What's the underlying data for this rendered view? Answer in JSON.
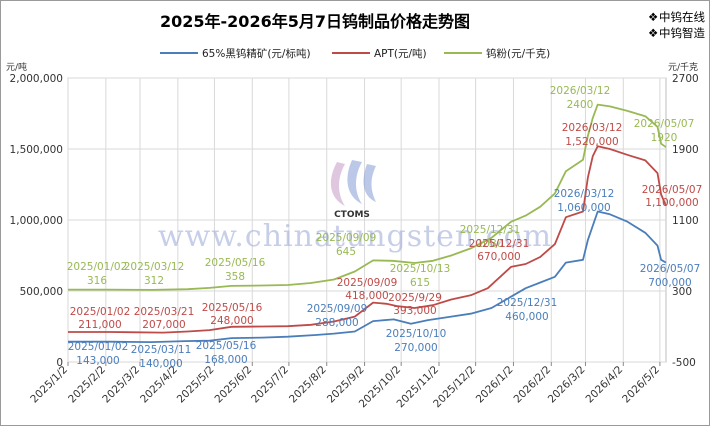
{
  "header": {
    "title": "2025年-2026年5月7日钨制品价格走势图",
    "brand_lines": [
      "中钨在线",
      "中钨智造"
    ]
  },
  "watermark": {
    "text": "www.chinatungsten.com",
    "logo_text": "CTOMS"
  },
  "colors": {
    "ore": "#4a7ebb",
    "apt": "#be4b48",
    "powder": "#98b954"
  },
  "chart_data": {
    "type": "line",
    "title": "2025年-2026年5月7日钨制品价格走势图",
    "left_unit": "元/吨",
    "right_unit": "元/千克",
    "x_ticks": [
      "2025/1/2",
      "2025/2/2",
      "2025/3/2",
      "2025/4/2",
      "2025/5/2",
      "2025/6/2",
      "2025/7/2",
      "2025/8/2",
      "2025/9/2",
      "2025/10/2",
      "2025/11/2",
      "2025/12/2",
      "2026/1/2",
      "2026/2/2",
      "2026/3/2",
      "2026/4/2",
      "2026/5/2"
    ],
    "x_range": [
      "2025-01-02",
      "2026-05-07"
    ],
    "left_axis": {
      "min": 0,
      "max": 2000000,
      "step": 500000,
      "tick_labels": [
        "0",
        "500,000",
        "1,000,000",
        "1,500,000",
        "2,000,000"
      ]
    },
    "right_axis": {
      "min": -500,
      "max": 2700,
      "step": 800,
      "tick_labels": [
        "-500",
        "300",
        "1100",
        "1900",
        "2700"
      ]
    },
    "grid": true,
    "legend": "top",
    "series": [
      {
        "name": "65%黑钨精矿(元/标吨)",
        "axis": "left",
        "color": "#4a7ebb",
        "points": [
          [
            "2025-01-02",
            143000
          ],
          [
            "2025-02-05",
            143000
          ],
          [
            "2025-03-11",
            140000
          ],
          [
            "2025-04-08",
            147000
          ],
          [
            "2025-04-28",
            150000
          ],
          [
            "2025-05-16",
            168000
          ],
          [
            "2025-06-10",
            172000
          ],
          [
            "2025-07-01",
            178000
          ],
          [
            "2025-07-24",
            190000
          ],
          [
            "2025-08-08",
            200000
          ],
          [
            "2025-08-25",
            215000
          ],
          [
            "2025-09-09",
            288000
          ],
          [
            "2025-09-26",
            300000
          ],
          [
            "2025-10-10",
            270000
          ],
          [
            "2025-10-24",
            295000
          ],
          [
            "2025-11-12",
            320000
          ],
          [
            "2025-11-28",
            340000
          ],
          [
            "2025-12-15",
            380000
          ],
          [
            "2025-12-31",
            460000
          ],
          [
            "2026-01-12",
            520000
          ],
          [
            "2026-01-24",
            560000
          ],
          [
            "2026-02-05",
            600000
          ],
          [
            "2026-02-14",
            700000
          ],
          [
            "2026-02-28",
            720000
          ],
          [
            "2026-03-04",
            860000
          ],
          [
            "2026-03-08",
            960000
          ],
          [
            "2026-03-12",
            1060000
          ],
          [
            "2026-03-22",
            1040000
          ],
          [
            "2026-04-05",
            990000
          ],
          [
            "2026-04-20",
            910000
          ],
          [
            "2026-04-30",
            820000
          ],
          [
            "2026-05-03",
            720000
          ],
          [
            "2026-05-07",
            700000
          ]
        ]
      },
      {
        "name": "APT(元/吨)",
        "axis": "left",
        "color": "#be4b48",
        "points": [
          [
            "2025-01-02",
            211000
          ],
          [
            "2025-02-05",
            211000
          ],
          [
            "2025-03-21",
            207000
          ],
          [
            "2025-04-10",
            215000
          ],
          [
            "2025-04-28",
            225000
          ],
          [
            "2025-05-16",
            248000
          ],
          [
            "2025-06-10",
            250000
          ],
          [
            "2025-07-01",
            252000
          ],
          [
            "2025-07-20",
            262000
          ],
          [
            "2025-08-08",
            285000
          ],
          [
            "2025-08-25",
            320000
          ],
          [
            "2025-09-09",
            418000
          ],
          [
            "2025-09-20",
            410000
          ],
          [
            "2025-09-29",
            393000
          ],
          [
            "2025-10-13",
            380000
          ],
          [
            "2025-10-28",
            400000
          ],
          [
            "2025-11-12",
            440000
          ],
          [
            "2025-11-28",
            470000
          ],
          [
            "2025-12-12",
            520000
          ],
          [
            "2025-12-31",
            670000
          ],
          [
            "2026-01-12",
            690000
          ],
          [
            "2026-01-24",
            740000
          ],
          [
            "2026-02-05",
            830000
          ],
          [
            "2026-02-14",
            1020000
          ],
          [
            "2026-02-28",
            1060000
          ],
          [
            "2026-03-04",
            1300000
          ],
          [
            "2026-03-08",
            1450000
          ],
          [
            "2026-03-12",
            1520000
          ],
          [
            "2026-03-22",
            1500000
          ],
          [
            "2026-04-05",
            1460000
          ],
          [
            "2026-04-20",
            1420000
          ],
          [
            "2026-04-30",
            1330000
          ],
          [
            "2026-05-03",
            1180000
          ],
          [
            "2026-05-07",
            1100000
          ]
        ]
      },
      {
        "name": "钨粉(元/千克)",
        "axis": "right",
        "color": "#98b954",
        "points": [
          [
            "2025-01-02",
            316
          ],
          [
            "2025-02-05",
            316
          ],
          [
            "2025-03-12",
            312
          ],
          [
            "2025-04-10",
            320
          ],
          [
            "2025-04-28",
            335
          ],
          [
            "2025-05-16",
            358
          ],
          [
            "2025-06-10",
            362
          ],
          [
            "2025-07-01",
            368
          ],
          [
            "2025-07-20",
            390
          ],
          [
            "2025-08-08",
            430
          ],
          [
            "2025-08-25",
            520
          ],
          [
            "2025-09-09",
            645
          ],
          [
            "2025-09-25",
            640
          ],
          [
            "2025-10-13",
            615
          ],
          [
            "2025-10-28",
            640
          ],
          [
            "2025-11-12",
            700
          ],
          [
            "2025-11-28",
            780
          ],
          [
            "2025-12-15",
            900
          ],
          [
            "2025-12-31",
            1080
          ],
          [
            "2026-01-12",
            1150
          ],
          [
            "2026-01-24",
            1250
          ],
          [
            "2026-02-05",
            1400
          ],
          [
            "2026-02-14",
            1650
          ],
          [
            "2026-02-28",
            1780
          ],
          [
            "2026-03-04",
            2050
          ],
          [
            "2026-03-08",
            2250
          ],
          [
            "2026-03-12",
            2400
          ],
          [
            "2026-03-22",
            2380
          ],
          [
            "2026-04-05",
            2330
          ],
          [
            "2026-04-20",
            2270
          ],
          [
            "2026-04-30",
            2150
          ],
          [
            "2026-05-03",
            1960
          ],
          [
            "2026-05-07",
            1920
          ]
        ]
      }
    ],
    "annotations": [
      {
        "series": 2,
        "date_label": "2025/01/02",
        "value_label": "316"
      },
      {
        "series": 2,
        "date_label": "2025/03/12",
        "value_label": "312"
      },
      {
        "series": 2,
        "date_label": "2025/05/16",
        "value_label": "358"
      },
      {
        "series": 2,
        "date_label": "2025/09/09",
        "value_label": "645"
      },
      {
        "series": 2,
        "date_label": "2025/10/13",
        "value_label": "615"
      },
      {
        "series": 2,
        "date_label": "2025/12/31",
        "value_label": "1080"
      },
      {
        "series": 2,
        "date_label": "2026/03/12",
        "value_label": "2400"
      },
      {
        "series": 2,
        "date_label": "2026/05/07",
        "value_label": "1920"
      },
      {
        "series": 1,
        "date_label": "2025/01/02",
        "value_label": "211,000"
      },
      {
        "series": 1,
        "date_label": "2025/03/21",
        "value_label": "207,000"
      },
      {
        "series": 1,
        "date_label": "2025/05/16",
        "value_label": "248,000"
      },
      {
        "series": 1,
        "date_label": "2025/09/09",
        "value_label": "418,000"
      },
      {
        "series": 1,
        "date_label": "2025/9/29",
        "value_label": "393,000"
      },
      {
        "series": 1,
        "date_label": "2025/12/31",
        "value_label": "670,000"
      },
      {
        "series": 1,
        "date_label": "2026/03/12",
        "value_label": "1,520,000"
      },
      {
        "series": 1,
        "date_label": "2026/05/07",
        "value_label": "1,100,000"
      },
      {
        "series": 0,
        "date_label": "2025/01/02",
        "value_label": "143,000"
      },
      {
        "series": 0,
        "date_label": "2025/03/11",
        "value_label": "140,000"
      },
      {
        "series": 0,
        "date_label": "2025/05/16",
        "value_label": "168,000"
      },
      {
        "series": 0,
        "date_label": "2025/09/09",
        "value_label": "288,000"
      },
      {
        "series": 0,
        "date_label": "2025/10/10",
        "value_label": "270,000"
      },
      {
        "series": 0,
        "date_label": "2025/12/31",
        "value_label": "460,000"
      },
      {
        "series": 0,
        "date_label": "2026/03/12",
        "value_label": "1,060,000"
      },
      {
        "series": 0,
        "date_label": "2026/05/07",
        "value_label": "700,000"
      }
    ]
  }
}
